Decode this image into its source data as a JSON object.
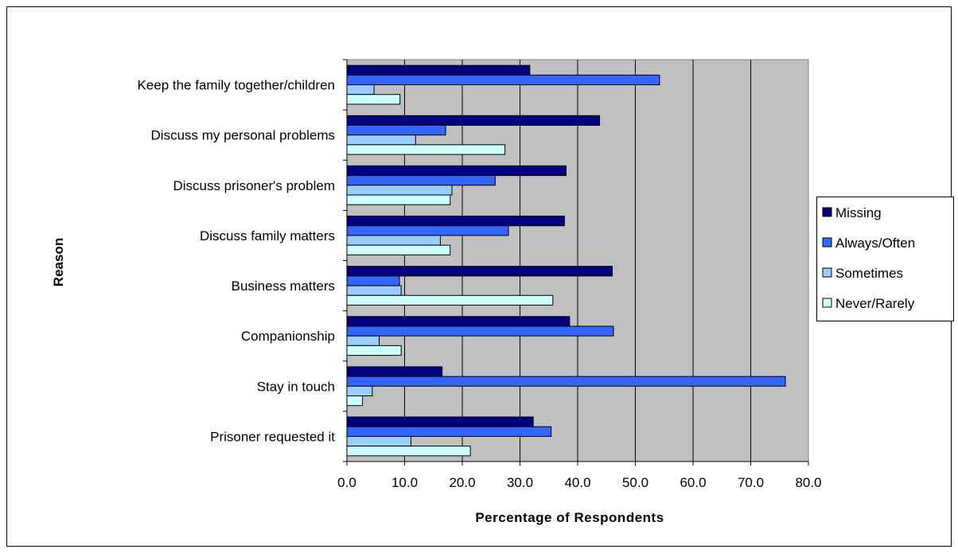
{
  "chart_data": {
    "type": "bar",
    "orientation": "horizontal",
    "title": "",
    "xlabel": "Percentage of Respondents",
    "ylabel": "Reason",
    "xlim": [
      0,
      80
    ],
    "x_ticks": [
      "0.0",
      "10.0",
      "20.0",
      "30.0",
      "40.0",
      "50.0",
      "60.0",
      "70.0",
      "80.0"
    ],
    "grid": "vertical",
    "legend_position": "right",
    "categories": [
      "Keep the family together/children",
      "Discuss my personal problems",
      "Discuss prisoner's problem",
      "Discuss family matters",
      "Business matters",
      "Companionship",
      "Stay in touch",
      "Prisoner requested it"
    ],
    "series": [
      {
        "name": "Missing",
        "color": "#000080",
        "values": [
          31.7,
          43.8,
          38.0,
          37.7,
          46.0,
          38.6,
          16.5,
          32.3
        ]
      },
      {
        "name": "Always/Often",
        "color": "#3366ff",
        "values": [
          54.2,
          17.1,
          25.7,
          28.0,
          9.1,
          46.2,
          76.0,
          35.4
        ]
      },
      {
        "name": "Sometimes",
        "color": "#99ccff",
        "values": [
          4.7,
          11.9,
          18.2,
          16.2,
          9.4,
          5.6,
          4.4,
          11.1
        ]
      },
      {
        "name": "Never/Rarely",
        "color": "#ccffff",
        "values": [
          9.2,
          27.4,
          17.9,
          17.9,
          35.7,
          9.4,
          2.7,
          21.4
        ]
      }
    ],
    "colors": {
      "plot_background": "#c0c0c0",
      "frame": "#000000"
    }
  }
}
